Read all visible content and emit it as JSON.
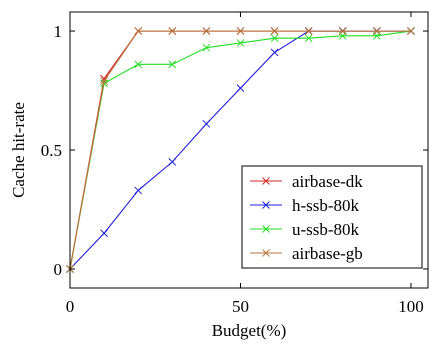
{
  "chart_data": {
    "type": "line",
    "xlabel": "Budget(%)",
    "ylabel": "Cache hit-rate",
    "xlim": [
      0,
      105
    ],
    "ylim": [
      -0.08,
      1.08
    ],
    "x_ticks": [
      0,
      50,
      100
    ],
    "x_tick_labels": [
      "0",
      "50",
      "100"
    ],
    "y_ticks": [
      0,
      0.5,
      1
    ],
    "y_tick_labels": [
      "0",
      "0.5",
      "1"
    ],
    "grid": false,
    "legend_position": "bottom-right",
    "marker": "x",
    "series": [
      {
        "name": "airbase-dk",
        "color": "#d62728",
        "x": [
          0,
          10,
          20,
          30,
          40,
          50,
          60,
          70,
          80,
          90,
          100
        ],
        "y": [
          0,
          0.8,
          1,
          1,
          1,
          1,
          1,
          1,
          1,
          1,
          1
        ]
      },
      {
        "name": "h-ssb-80k",
        "color": "#1f1fdd",
        "x": [
          0,
          10,
          20,
          30,
          40,
          50,
          60,
          70,
          80,
          90,
          100
        ],
        "y": [
          0,
          0.15,
          0.33,
          0.45,
          0.61,
          0.76,
          0.91,
          1,
          1,
          1,
          1
        ]
      },
      {
        "name": "u-ssb-80k",
        "color": "#22dd22",
        "x": [
          0,
          10,
          20,
          30,
          40,
          50,
          60,
          70,
          80,
          90,
          100
        ],
        "y": [
          0,
          0.78,
          0.86,
          0.86,
          0.93,
          0.95,
          0.97,
          0.97,
          0.98,
          0.98,
          1
        ]
      },
      {
        "name": "airbase-gb",
        "color": "#b8733a",
        "x": [
          0,
          10,
          20,
          30,
          40,
          50,
          60,
          70,
          80,
          90,
          100
        ],
        "y": [
          0,
          0.79,
          1,
          1,
          1,
          1,
          1,
          1,
          1,
          1,
          1
        ]
      }
    ]
  }
}
